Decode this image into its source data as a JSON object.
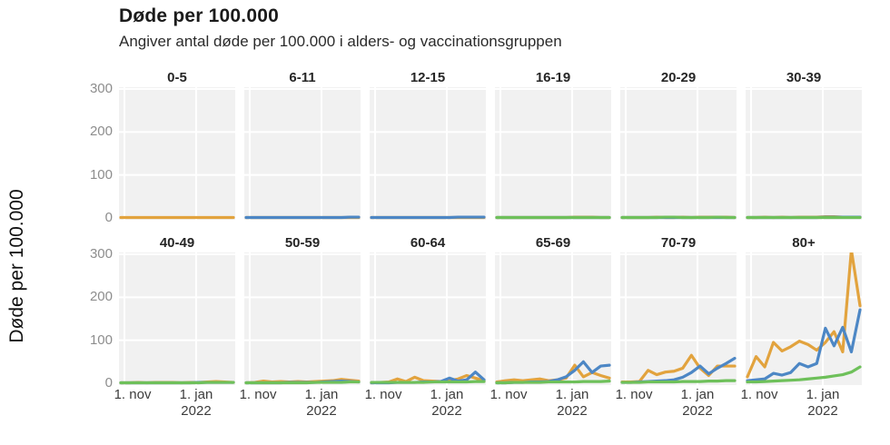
{
  "figure": {
    "title": "Døde per 100.000",
    "subtitle": "Angiver antal døde per 100.000 i alders- og vaccinationsgruppen",
    "y_axis_title": "Døde per 100.000"
  },
  "chart_data": {
    "type": "line",
    "layout": "small-multiples 6x2",
    "title": "Døde per 100.000",
    "subtitle": "Angiver antal døde per 100.000 i alders- og vaccinationsgruppen",
    "ylabel": "Døde per 100.000",
    "ylim": [
      0,
      300
    ],
    "yticks": [
      0,
      100,
      200,
      300
    ],
    "grid": true,
    "legend": "none",
    "x_axis": {
      "tick_labels": [
        {
          "label": "1. nov",
          "sublabel": "",
          "pos": 0.047
        },
        {
          "label": "1. jan",
          "sublabel": "2022",
          "pos": 0.664
        }
      ]
    },
    "colors": {
      "panel_bg": "#f1f1f1",
      "gridline": "#ffffff"
    },
    "series_meta": [
      {
        "key": "orange",
        "color": "#E2A33E"
      },
      {
        "key": "blue",
        "color": "#4D87C5"
      },
      {
        "key": "green",
        "color": "#6EC05A"
      }
    ],
    "panels": [
      {
        "label": "0-5",
        "series": {
          "orange": [
            1,
            1,
            1,
            1,
            1,
            1,
            1,
            1,
            1,
            1,
            1,
            1,
            1,
            1
          ]
        }
      },
      {
        "label": "6-11",
        "series": {
          "orange": [
            1,
            1,
            1,
            1,
            1,
            1,
            1,
            1,
            1,
            1,
            1,
            1,
            1,
            1
          ],
          "blue": [
            1,
            1,
            1,
            1,
            1,
            1,
            1,
            1,
            1,
            1,
            1,
            1,
            2,
            2
          ]
        }
      },
      {
        "label": "12-15",
        "series": {
          "orange": [
            1,
            1,
            1,
            1,
            1,
            1,
            1,
            1,
            1,
            1,
            1,
            1,
            1,
            1
          ],
          "blue": [
            1,
            1,
            1,
            1,
            1,
            1,
            1,
            1,
            1,
            1,
            2,
            2,
            2,
            2
          ]
        }
      },
      {
        "label": "16-19",
        "series": {
          "orange": [
            1,
            1,
            1,
            1,
            1,
            1,
            1,
            1,
            1,
            2,
            2,
            2,
            1,
            1
          ],
          "blue": [
            1,
            1,
            1,
            1,
            1,
            1,
            1,
            1,
            1,
            1,
            1,
            1,
            1,
            1
          ],
          "green": [
            1,
            1,
            1,
            1,
            1,
            1,
            1,
            1,
            1,
            1,
            1,
            1,
            1,
            1
          ]
        }
      },
      {
        "label": "20-29",
        "series": {
          "orange": [
            1,
            1,
            1,
            1,
            2,
            1,
            1,
            2,
            1,
            2,
            2,
            2,
            2,
            1
          ],
          "blue": [
            1,
            1,
            1,
            1,
            1,
            1,
            1,
            1,
            1,
            1,
            1,
            1,
            1,
            1
          ],
          "green": [
            1,
            1,
            1,
            1,
            1,
            2,
            2,
            1,
            1,
            1,
            1,
            2,
            1,
            1
          ]
        }
      },
      {
        "label": "30-39",
        "series": {
          "orange": [
            1,
            1,
            2,
            1,
            2,
            1,
            2,
            2,
            2,
            3,
            3,
            2,
            2,
            2
          ],
          "blue": [
            1,
            1,
            1,
            1,
            1,
            1,
            1,
            1,
            1,
            2,
            2,
            2,
            2,
            2
          ],
          "green": [
            1,
            1,
            1,
            1,
            1,
            1,
            1,
            1,
            1,
            1,
            1,
            1,
            1,
            1
          ]
        }
      },
      {
        "label": "40-49",
        "series": {
          "orange": [
            1,
            1,
            2,
            1,
            2,
            2,
            2,
            1,
            2,
            2,
            3,
            4,
            3,
            2
          ],
          "blue": [
            1,
            1,
            1,
            1,
            1,
            1,
            1,
            1,
            1,
            2,
            2,
            2,
            2,
            2
          ],
          "green": [
            1,
            1,
            1,
            1,
            1,
            1,
            1,
            1,
            1,
            1,
            2,
            2,
            2,
            2
          ]
        }
      },
      {
        "label": "50-59",
        "series": {
          "orange": [
            1,
            2,
            5,
            3,
            4,
            3,
            4,
            3,
            4,
            5,
            6,
            9,
            7,
            5
          ],
          "blue": [
            1,
            1,
            1,
            1,
            1,
            2,
            2,
            2,
            2,
            3,
            4,
            5,
            4,
            3
          ],
          "green": [
            1,
            1,
            1,
            1,
            1,
            1,
            1,
            1,
            2,
            2,
            2,
            2,
            3,
            3
          ]
        }
      },
      {
        "label": "60-64",
        "series": {
          "orange": [
            1,
            2,
            3,
            10,
            4,
            14,
            6,
            5,
            4,
            6,
            10,
            18,
            12,
            6
          ],
          "blue": [
            1,
            1,
            1,
            2,
            2,
            2,
            3,
            3,
            4,
            12,
            5,
            8,
            26,
            8
          ],
          "green": [
            2,
            2,
            2,
            2,
            2,
            2,
            2,
            3,
            3,
            3,
            3,
            3,
            4,
            4
          ]
        }
      },
      {
        "label": "65-69",
        "series": {
          "orange": [
            3,
            6,
            8,
            6,
            8,
            10,
            6,
            8,
            12,
            42,
            15,
            25,
            18,
            12
          ],
          "blue": [
            1,
            1,
            2,
            2,
            3,
            3,
            4,
            8,
            15,
            30,
            50,
            25,
            40,
            42
          ],
          "green": [
            1,
            1,
            2,
            2,
            2,
            2,
            3,
            3,
            3,
            3,
            4,
            4,
            4,
            5
          ]
        }
      },
      {
        "label": "70-79",
        "series": {
          "orange": [
            3,
            3,
            4,
            30,
            20,
            26,
            28,
            35,
            65,
            35,
            18,
            40,
            40,
            40
          ],
          "blue": [
            2,
            2,
            3,
            4,
            5,
            6,
            8,
            14,
            25,
            40,
            22,
            35,
            46,
            58
          ],
          "green": [
            2,
            2,
            2,
            3,
            3,
            3,
            3,
            4,
            4,
            4,
            5,
            5,
            6,
            6
          ]
        }
      },
      {
        "label": "80+",
        "series": {
          "orange": [
            15,
            62,
            38,
            95,
            75,
            85,
            98,
            90,
            77,
            95,
            120,
            73,
            310,
            180
          ],
          "blue": [
            6,
            8,
            10,
            23,
            19,
            25,
            46,
            38,
            46,
            128,
            87,
            130,
            73,
            171
          ],
          "green": [
            3,
            3,
            4,
            5,
            6,
            7,
            8,
            10,
            12,
            14,
            17,
            20,
            26,
            38
          ]
        }
      }
    ]
  }
}
